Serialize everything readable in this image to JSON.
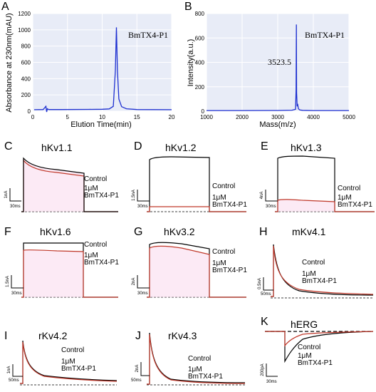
{
  "figure": {
    "panels": {
      "A": {
        "letter": "A",
        "annotation": "BmTX4-P1",
        "ylabel": "Absorbance at 230nm(mAU)",
        "xlabel": "Elution Time(min)",
        "yticks": [
          "0",
          "200",
          "400",
          "600",
          "800",
          "1000",
          "1200"
        ],
        "xticks": [
          "0",
          "5",
          "10",
          "15",
          "20"
        ]
      },
      "B": {
        "letter": "B",
        "annotation": "BmTX4-P1",
        "peak_label": "3523.5",
        "ylabel": "Intensity(a.u.)",
        "xlabel": "Mass(m/z)",
        "yticks": [
          "0",
          "200",
          "400",
          "600",
          "800"
        ],
        "xticks": [
          "1000",
          "2000",
          "3000",
          "4000",
          "5000"
        ]
      },
      "C": {
        "letter": "C",
        "title": "hKv1.1",
        "control": "Control",
        "dose": "1μM",
        "toxin": "BmTX4-P1",
        "scale_current": "1nA",
        "scale_time": "30ms"
      },
      "D": {
        "letter": "D",
        "title": "hKv1.2",
        "control": "Control",
        "dose": "1μM",
        "toxin": "BmTX4-P1",
        "scale_current": "1.5nA",
        "scale_time": "30ms"
      },
      "E": {
        "letter": "E",
        "title": "hKv1.3",
        "control": "Control",
        "dose": "1μM",
        "toxin": "BmTX4-P1",
        "scale_current": "4nA",
        "scale_time": "30ms"
      },
      "F": {
        "letter": "F",
        "title": "hKv1.6",
        "control": "Control",
        "dose": "1μM",
        "toxin": "BmTX4-P1",
        "scale_current": "1.5nA",
        "scale_time": "30ms"
      },
      "G": {
        "letter": "G",
        "title": "hKv3.2",
        "control": "Control",
        "dose": "1μM",
        "toxin": "BmTX4-P1",
        "scale_current": "2nA",
        "scale_time": "30ms"
      },
      "H": {
        "letter": "H",
        "title": "mKv4.1",
        "control": "Control",
        "dose": "1μM",
        "toxin": "BmTX4-P1",
        "scale_current": "0.5nA",
        "scale_time": "50ms"
      },
      "I": {
        "letter": "I",
        "title": "rKv4.2",
        "control": "Control",
        "dose": "1μM",
        "toxin": "BmTX4-P1",
        "scale_current": "1nA",
        "scale_time": "50ms"
      },
      "J": {
        "letter": "J",
        "title": "rKv4.3",
        "control": "Control",
        "dose": "1μM",
        "toxin": "BmTX4-P1",
        "scale_current": "2nA",
        "scale_time": "50ms"
      },
      "K": {
        "letter": "K",
        "title": "hERG",
        "control": "Control",
        "dose": "1μM",
        "toxin": "BmTX4-P1",
        "scale_current": "200pA",
        "scale_time": "30ms"
      }
    },
    "colors": {
      "trace_blue": "#1d2fd0",
      "control_trace": "#000000",
      "toxin_trace": "#c0392b",
      "plot_bg": "#e8ecf7",
      "grid": "#ffffff"
    }
  },
  "chart_data": [
    {
      "type": "line",
      "panel": "A",
      "ylabel": "Absorbance at 230nm(mAU)",
      "xlabel": "Elution Time(min)",
      "xlim": [
        0,
        20
      ],
      "ylim": [
        0,
        1200
      ],
      "series": [
        {
          "x": [
            0.2,
            1.5,
            1.9,
            2.0,
            2.1,
            2.3,
            4,
            8,
            10,
            11,
            11.6,
            11.9,
            12.05,
            12.2,
            12.4,
            12.8,
            13.5,
            15,
            20
          ],
          "y": [
            18,
            20,
            60,
            -10,
            30,
            20,
            20,
            22,
            24,
            28,
            60,
            500,
            1030,
            500,
            150,
            55,
            30,
            20,
            18
          ]
        }
      ],
      "annotations": [
        "BmTX4-P1"
      ]
    },
    {
      "type": "line",
      "panel": "B",
      "ylabel": "Intensity(a.u.)",
      "xlabel": "Mass(m/z)",
      "xlim": [
        1000,
        5000
      ],
      "ylim": [
        0,
        800
      ],
      "series": [
        {
          "x": [
            1000,
            2000,
            3000,
            3400,
            3500,
            3515,
            3523.5,
            3530,
            3545,
            3560,
            3580,
            3620,
            3700,
            4000,
            5000
          ],
          "y": [
            5,
            5,
            6,
            8,
            15,
            180,
            710,
            150,
            40,
            60,
            20,
            10,
            7,
            5,
            5
          ]
        }
      ],
      "annotations": [
        "BmTX4-P1",
        "3523.5"
      ]
    }
  ]
}
